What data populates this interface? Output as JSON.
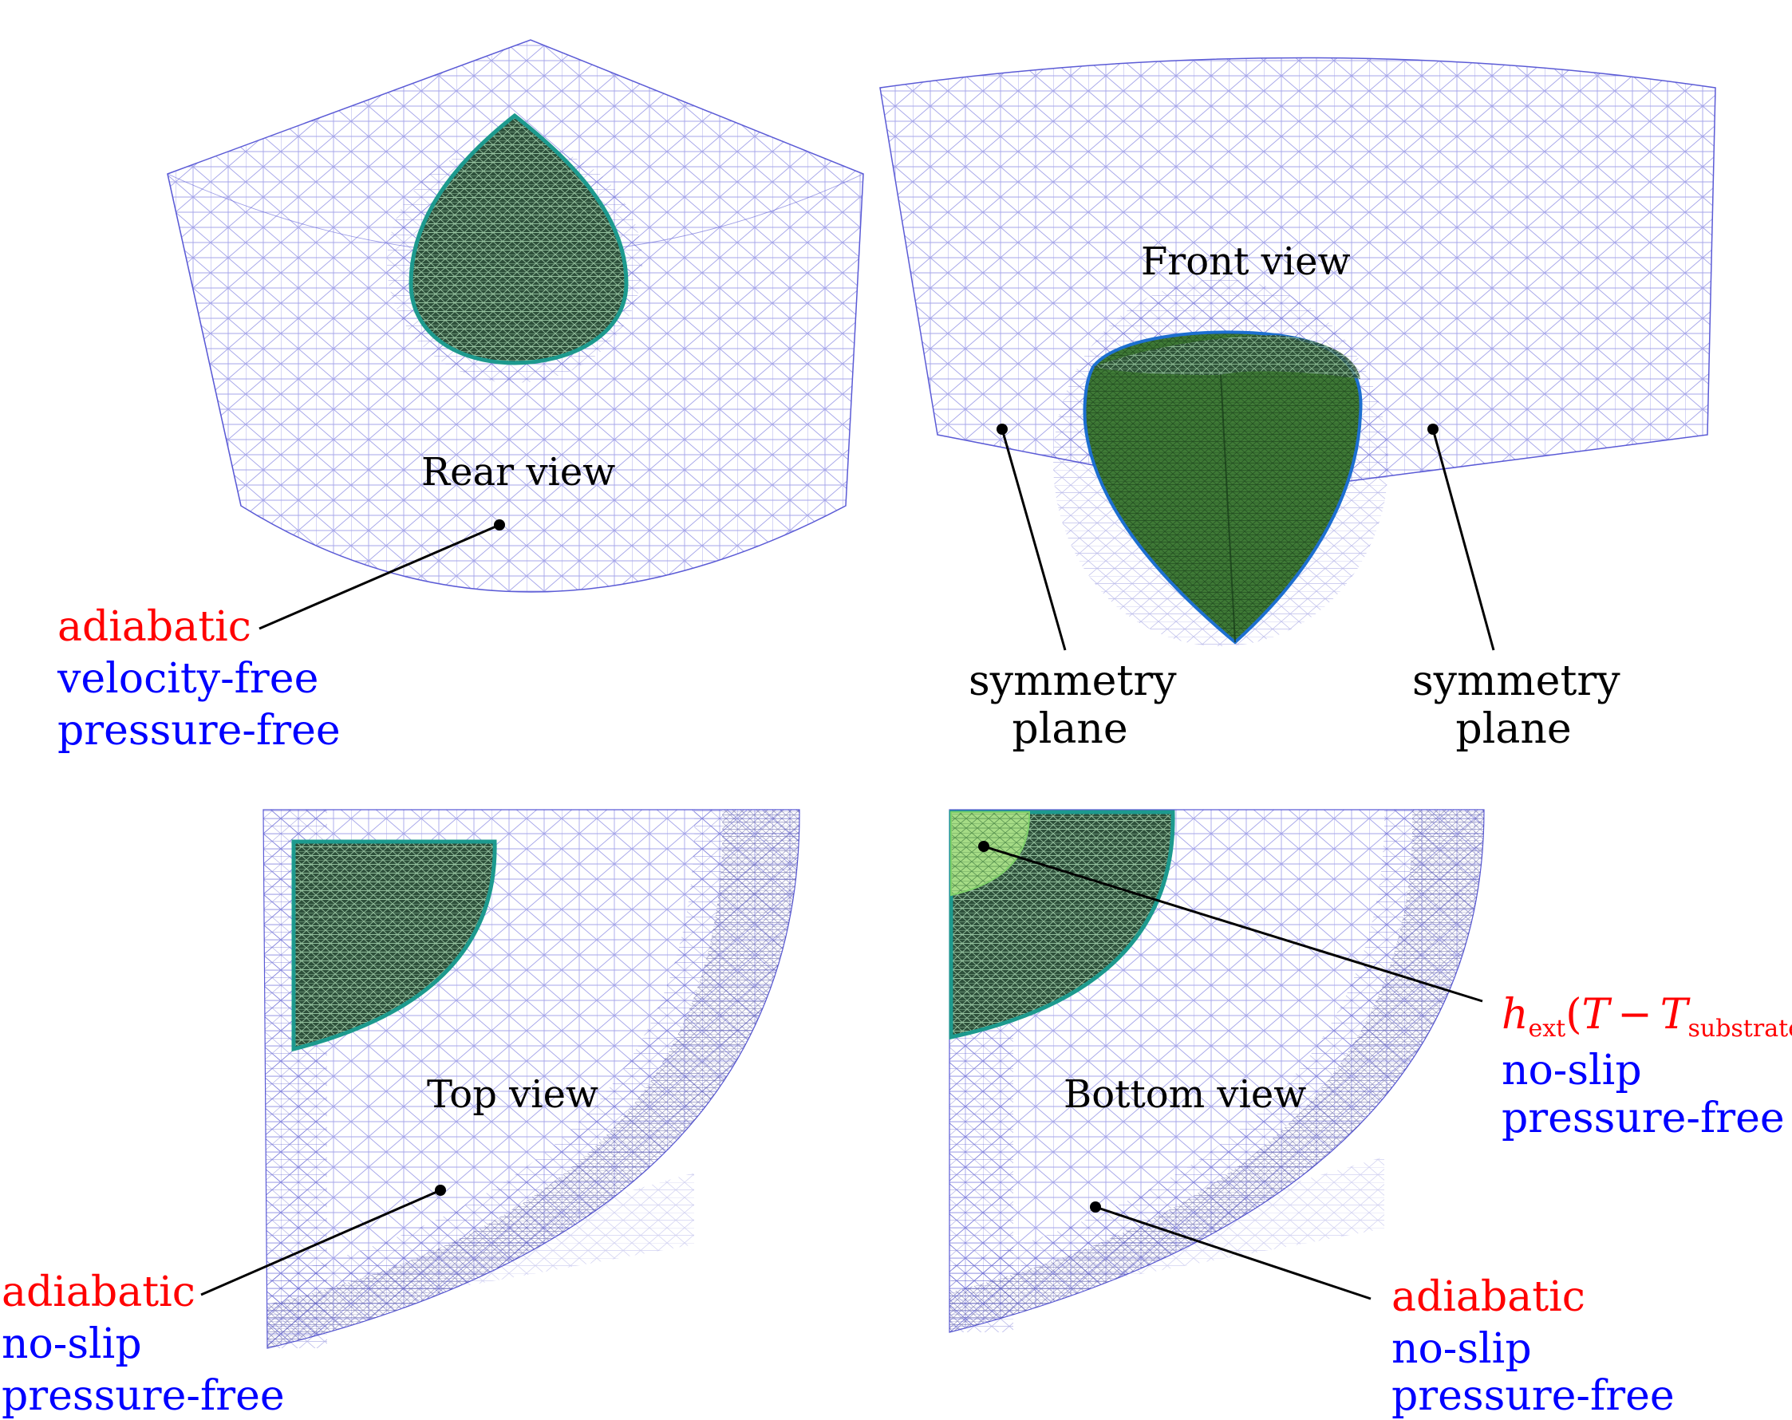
{
  "colors": {
    "thermal": "#ff0000",
    "flow": "#0000ff",
    "text": "#000000",
    "mesh": "#5b5bd6",
    "droplet_fill": "#2d5a3a",
    "droplet_mesh": "#a8e0b0",
    "interface": "#1d9a8e",
    "contact_patch": "#9ed67e"
  },
  "views": {
    "rear": {
      "title": "Rear view",
      "bc": {
        "thermal": "adiabatic",
        "velocity": "velocity-free",
        "pressure": "pressure-free"
      }
    },
    "front": {
      "title": "Front view",
      "left_label": [
        "symmetry",
        "plane"
      ],
      "right_label": [
        "symmetry",
        "plane"
      ]
    },
    "top": {
      "title": "Top view",
      "bc": {
        "thermal": "adiabatic",
        "velocity": "no-slip",
        "pressure": "pressure-free"
      }
    },
    "bottom": {
      "title": "Bottom view",
      "contact_bc": {
        "h": "h",
        "h_sub": "ext",
        "T": "T",
        "minus": "−",
        "Ts": "T",
        "Ts_sub": "substrate",
        "velocity": "no-slip",
        "pressure": "pressure-free"
      },
      "bc": {
        "thermal": "adiabatic",
        "velocity": "no-slip",
        "pressure": "pressure-free"
      }
    }
  }
}
